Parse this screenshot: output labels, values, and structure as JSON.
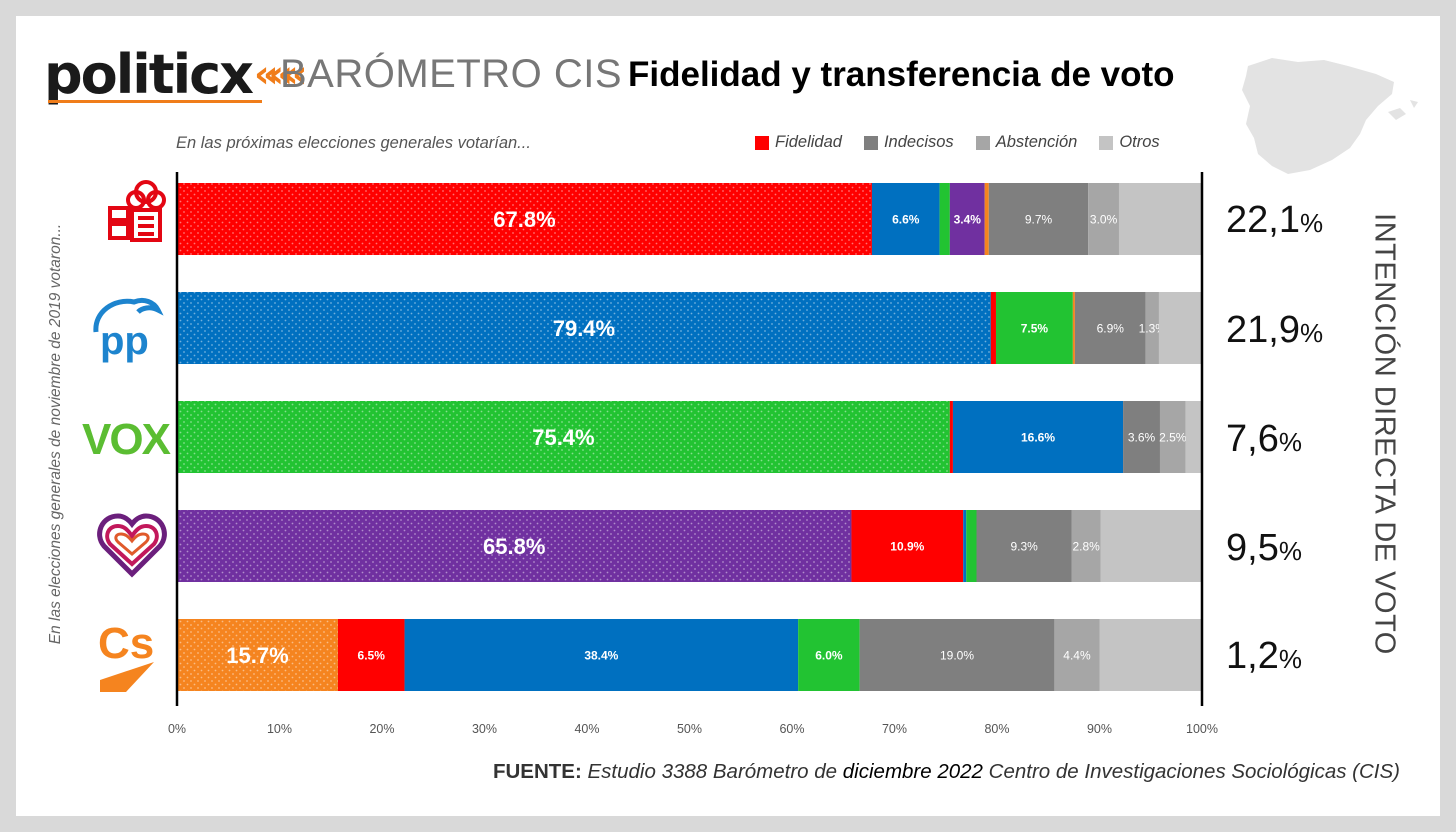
{
  "header": {
    "brand": "politicx",
    "title_barometer": "BARÓMETRO CIS",
    "title_main": "Fidelidad y transferencia de voto"
  },
  "subtitle": "En las próximas elecciones generales votarían...",
  "y_axis_label": "En las elecciones generales de noviembre de 2019 votaron...",
  "right_axis_label": "INTENCIÓN DIRECTA DE VOTO",
  "legend": [
    {
      "label": "Fidelidad",
      "color": "#ff0000"
    },
    {
      "label": "Indecisos",
      "color": "#7f7f7f"
    },
    {
      "label": "Abstención",
      "color": "#a6a6a6"
    },
    {
      "label": "Otros",
      "color": "#c4c4c4"
    }
  ],
  "parties": [
    {
      "logo": "psoe-logo-icon",
      "intention_value": "22,1",
      "intention_unit": "%"
    },
    {
      "logo": "pp-logo-icon",
      "intention_value": "21,9",
      "intention_unit": "%"
    },
    {
      "logo": "vox-logo-icon",
      "intention_value": "7,6",
      "intention_unit": "%"
    },
    {
      "logo": "unidas-podemos-logo-icon",
      "intention_value": "9,5",
      "intention_unit": "%"
    },
    {
      "logo": "ciudadanos-logo-icon",
      "intention_value": "1,2",
      "intention_unit": "%"
    }
  ],
  "source": {
    "prefix": "FUENTE:",
    "text_a": "Estudio 3388 Barómetro de",
    "text_b": "diciembre 2022",
    "text_c": "Centro de Investigaciones Sociológicas (CIS)"
  },
  "colors": {
    "psoe": "#ff0000",
    "pp": "#0070c0",
    "vox": "#22c332",
    "up": "#7030a0",
    "cs": "#f5841f",
    "indecisos": "#7f7f7f",
    "abstencion": "#a6a6a6",
    "otros": "#c4c4c4"
  },
  "chart_data": {
    "type": "bar",
    "orientation": "horizontal",
    "stacked": true,
    "xlim": [
      0,
      100
    ],
    "x_ticks": [
      "0%",
      "10%",
      "20%",
      "30%",
      "40%",
      "50%",
      "60%",
      "70%",
      "80%",
      "90%",
      "100%"
    ],
    "rows": [
      {
        "segments": [
          {
            "value": 67.8,
            "label": "67.8%",
            "color": "#ff0000",
            "fidelity": true
          },
          {
            "value": 6.6,
            "label": "6.6%",
            "color": "#0070c0"
          },
          {
            "value": 1.0,
            "label": "",
            "color": "#22c332"
          },
          {
            "value": 3.4,
            "label": "3.4%",
            "color": "#7030a0"
          },
          {
            "value": 0.4,
            "label": "",
            "color": "#f5841f"
          },
          {
            "value": 9.7,
            "label": "9.7%",
            "color": "#7f7f7f"
          },
          {
            "value": 3.0,
            "label": "3.0%",
            "color": "#a6a6a6"
          },
          {
            "value": 8.1,
            "label": "",
            "color": "#c4c4c4"
          }
        ]
      },
      {
        "segments": [
          {
            "value": 79.4,
            "label": "79.4%",
            "color": "#0070c0",
            "fidelity": true
          },
          {
            "value": 0.5,
            "label": "",
            "color": "#ff0000"
          },
          {
            "value": 7.5,
            "label": "7.5%",
            "color": "#22c332"
          },
          {
            "value": 0.2,
            "label": "",
            "color": "#f5841f"
          },
          {
            "value": 6.9,
            "label": "6.9%",
            "color": "#7f7f7f"
          },
          {
            "value": 1.3,
            "label": "1.3%",
            "color": "#a6a6a6"
          },
          {
            "value": 4.2,
            "label": "",
            "color": "#c4c4c4"
          }
        ]
      },
      {
        "segments": [
          {
            "value": 75.4,
            "label": "75.4%",
            "color": "#22c332",
            "fidelity": true
          },
          {
            "value": 0.3,
            "label": "",
            "color": "#ff0000"
          },
          {
            "value": 16.6,
            "label": "16.6%",
            "color": "#0070c0"
          },
          {
            "value": 3.6,
            "label": "3.6%",
            "color": "#7f7f7f"
          },
          {
            "value": 2.5,
            "label": "2.5%",
            "color": "#a6a6a6"
          },
          {
            "value": 1.6,
            "label": "",
            "color": "#c4c4c4"
          }
        ]
      },
      {
        "segments": [
          {
            "value": 65.8,
            "label": "65.8%",
            "color": "#7030a0",
            "fidelity": true
          },
          {
            "value": 10.9,
            "label": "10.9%",
            "color": "#ff0000"
          },
          {
            "value": 0.3,
            "label": "",
            "color": "#0070c0"
          },
          {
            "value": 1.0,
            "label": "",
            "color": "#22c332"
          },
          {
            "value": 9.3,
            "label": "9.3%",
            "color": "#7f7f7f"
          },
          {
            "value": 2.8,
            "label": "2.8%",
            "color": "#a6a6a6"
          },
          {
            "value": 9.9,
            "label": "",
            "color": "#c4c4c4"
          }
        ]
      },
      {
        "segments": [
          {
            "value": 15.7,
            "label": "15.7%",
            "color": "#f5841f",
            "fidelity": true
          },
          {
            "value": 6.5,
            "label": "6.5%",
            "color": "#ff0000"
          },
          {
            "value": 38.4,
            "label": "38.4%",
            "color": "#0070c0"
          },
          {
            "value": 6.0,
            "label": "6.0%",
            "color": "#22c332"
          },
          {
            "value": 19.0,
            "label": "19.0%",
            "color": "#7f7f7f"
          },
          {
            "value": 4.4,
            "label": "4.4%",
            "color": "#a6a6a6"
          },
          {
            "value": 10.0,
            "label": "",
            "color": "#c4c4c4"
          }
        ]
      }
    ]
  }
}
